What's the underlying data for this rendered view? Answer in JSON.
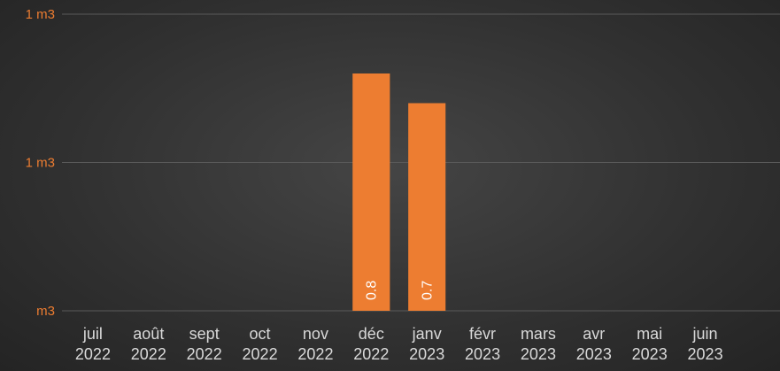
{
  "chart_data": {
    "type": "bar",
    "categories": [
      "juil 2022",
      "août 2022",
      "sept 2022",
      "oct 2022",
      "nov 2022",
      "déc 2022",
      "janv 2023",
      "févr 2023",
      "mars 2023",
      "avr 2023",
      "mai 2023",
      "juin 2023"
    ],
    "values": [
      null,
      null,
      null,
      null,
      null,
      0.8,
      0.7,
      null,
      null,
      null,
      null,
      null
    ],
    "color": "#ed7d31",
    "ylim": [
      0,
      1
    ],
    "yticks": [
      {
        "value": 0,
        "label": "m3"
      },
      {
        "value": 0.5,
        "label": "1 m3"
      },
      {
        "value": 1,
        "label": "1 m3"
      }
    ],
    "grid": true
  }
}
